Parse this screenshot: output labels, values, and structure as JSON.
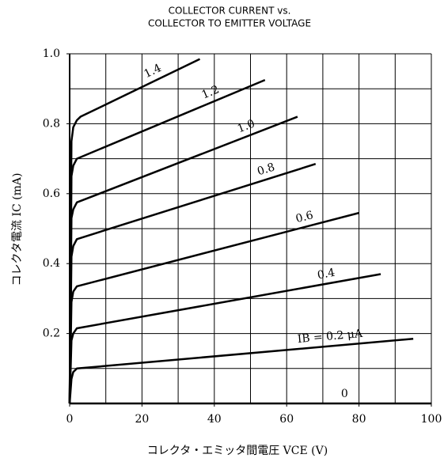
{
  "chart_data": {
    "type": "line",
    "title": [
      "COLLECTOR CURRENT vs.",
      "COLLECTOR TO EMITTER VOLTAGE"
    ],
    "xlabel": "コレクタ・エミッタ間電圧 VCE (V)",
    "ylabel": "コレクタ電流 IC (mA)",
    "xlim": [
      0,
      100
    ],
    "ylim": [
      0,
      1
    ],
    "xticks": [
      0,
      20,
      40,
      60,
      80,
      100
    ],
    "yticks": [
      0.2,
      0.4,
      0.6,
      {
        "value": 0.8,
        "label": "0.8"
      },
      {
        "value": 1,
        "label": "1.0"
      }
    ],
    "xgrid": [
      10,
      20,
      30,
      40,
      50,
      60,
      70,
      80,
      90,
      100
    ],
    "ygrid": [
      0.1,
      0.2,
      0.3,
      0.4,
      0.5,
      0.6,
      0.7,
      0.8,
      0.9,
      1
    ],
    "grid": true,
    "series": [
      {
        "name": "1.4",
        "color": "#000000",
        "x": [
          0,
          0.5,
          1,
          2,
          3,
          36
        ],
        "values": [
          0,
          0.75,
          0.79,
          0.81,
          0.82,
          0.985
        ]
      },
      {
        "name": "1.2",
        "color": "#000000",
        "x": [
          0,
          0.5,
          1,
          2,
          54
        ],
        "values": [
          0,
          0.65,
          0.68,
          0.7,
          0.925
        ]
      },
      {
        "name": "1.0",
        "color": "#000000",
        "x": [
          0,
          0.5,
          1,
          2,
          63
        ],
        "values": [
          0,
          0.53,
          0.555,
          0.575,
          0.82
        ]
      },
      {
        "name": "0.8",
        "color": "#000000",
        "x": [
          0,
          0.5,
          1,
          2,
          68
        ],
        "values": [
          0,
          0.42,
          0.45,
          0.47,
          0.685
        ]
      },
      {
        "name": "0.6",
        "color": "#000000",
        "x": [
          0,
          0.5,
          1,
          2,
          80
        ],
        "values": [
          0,
          0.29,
          0.32,
          0.335,
          0.545
        ]
      },
      {
        "name": "0.4",
        "color": "#000000",
        "x": [
          0,
          0.5,
          1,
          2,
          86
        ],
        "values": [
          0,
          0.18,
          0.2,
          0.215,
          0.37
        ]
      },
      {
        "name": "IB = 0.2 μA",
        "color": "#000000",
        "x": [
          0,
          0.5,
          1,
          2,
          95
        ],
        "values": [
          0,
          0.07,
          0.09,
          0.1,
          0.185
        ]
      },
      {
        "name": "0",
        "color": "#000000",
        "x": [
          0,
          100
        ],
        "values": [
          0,
          0
        ]
      }
    ]
  }
}
